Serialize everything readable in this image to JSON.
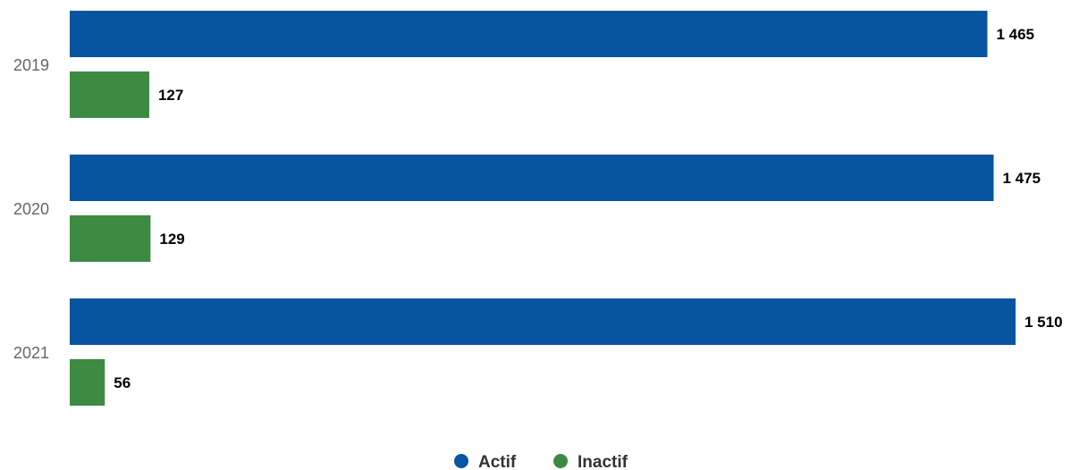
{
  "chart_data": {
    "type": "bar",
    "orientation": "horizontal",
    "categories": [
      "2019",
      "2020",
      "2021"
    ],
    "series": [
      {
        "name": "Actif",
        "color": "#0754a1",
        "values": [
          1465,
          1475,
          1510
        ],
        "labels": [
          "1 465",
          "1 475",
          "1 510"
        ]
      },
      {
        "name": "Inactif",
        "color": "#3d8a43",
        "values": [
          127,
          129,
          56
        ],
        "labels": [
          "127",
          "129",
          "56"
        ]
      }
    ],
    "xlim": [
      0,
      1510
    ],
    "grid": false,
    "legend": "bottom-center"
  }
}
